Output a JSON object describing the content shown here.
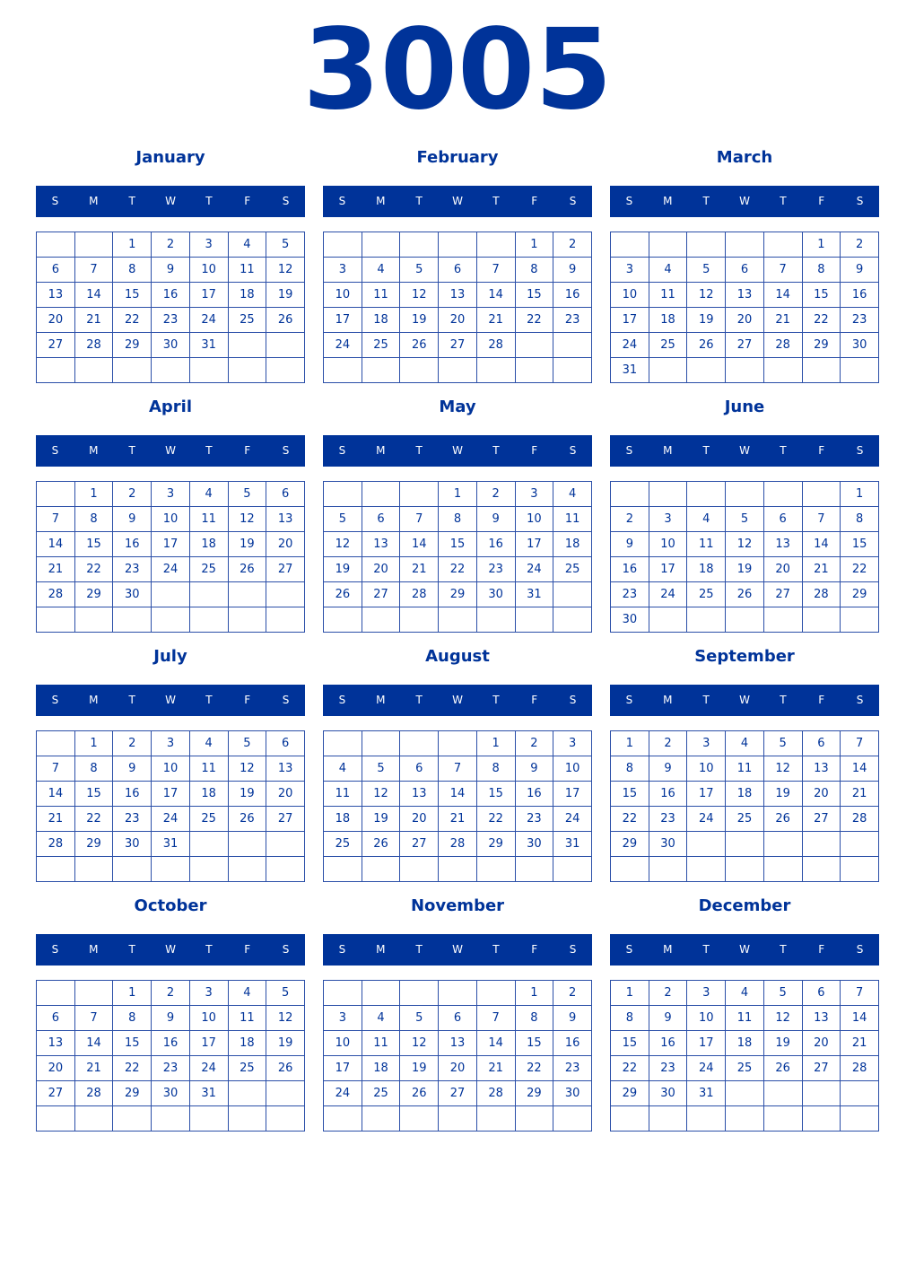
{
  "year": "3005",
  "weekday_labels": [
    "S",
    "M",
    "T",
    "W",
    "T",
    "F",
    "S"
  ],
  "colors": {
    "primary": "#003399",
    "header_text": "#ffffff",
    "border": "#2b4fa8"
  },
  "months": [
    {
      "name": "January",
      "weeks": [
        [
          null,
          null,
          1,
          2,
          3,
          4,
          5
        ],
        [
          6,
          7,
          8,
          9,
          10,
          11,
          12
        ],
        [
          13,
          14,
          15,
          16,
          17,
          18,
          19
        ],
        [
          20,
          21,
          22,
          23,
          24,
          25,
          26
        ],
        [
          27,
          28,
          29,
          30,
          31,
          null,
          null
        ],
        [
          null,
          null,
          null,
          null,
          null,
          null,
          null
        ]
      ]
    },
    {
      "name": "February",
      "weeks": [
        [
          null,
          null,
          null,
          null,
          null,
          1,
          2
        ],
        [
          3,
          4,
          5,
          6,
          7,
          8,
          9
        ],
        [
          10,
          11,
          12,
          13,
          14,
          15,
          16
        ],
        [
          17,
          18,
          19,
          20,
          21,
          22,
          23
        ],
        [
          24,
          25,
          26,
          27,
          28,
          null,
          null
        ],
        [
          null,
          null,
          null,
          null,
          null,
          null,
          null
        ]
      ]
    },
    {
      "name": "March",
      "weeks": [
        [
          null,
          null,
          null,
          null,
          null,
          1,
          2
        ],
        [
          3,
          4,
          5,
          6,
          7,
          8,
          9
        ],
        [
          10,
          11,
          12,
          13,
          14,
          15,
          16
        ],
        [
          17,
          18,
          19,
          20,
          21,
          22,
          23
        ],
        [
          24,
          25,
          26,
          27,
          28,
          29,
          30
        ],
        [
          31,
          null,
          null,
          null,
          null,
          null,
          null
        ]
      ]
    },
    {
      "name": "April",
      "weeks": [
        [
          null,
          1,
          2,
          3,
          4,
          5,
          6
        ],
        [
          7,
          8,
          9,
          10,
          11,
          12,
          13
        ],
        [
          14,
          15,
          16,
          17,
          18,
          19,
          20
        ],
        [
          21,
          22,
          23,
          24,
          25,
          26,
          27
        ],
        [
          28,
          29,
          30,
          null,
          null,
          null,
          null
        ],
        [
          null,
          null,
          null,
          null,
          null,
          null,
          null
        ]
      ]
    },
    {
      "name": "May",
      "weeks": [
        [
          null,
          null,
          null,
          1,
          2,
          3,
          4
        ],
        [
          5,
          6,
          7,
          8,
          9,
          10,
          11
        ],
        [
          12,
          13,
          14,
          15,
          16,
          17,
          18
        ],
        [
          19,
          20,
          21,
          22,
          23,
          24,
          25
        ],
        [
          26,
          27,
          28,
          29,
          30,
          31,
          null
        ],
        [
          null,
          null,
          null,
          null,
          null,
          null,
          null
        ]
      ]
    },
    {
      "name": "June",
      "weeks": [
        [
          null,
          null,
          null,
          null,
          null,
          null,
          1
        ],
        [
          2,
          3,
          4,
          5,
          6,
          7,
          8
        ],
        [
          9,
          10,
          11,
          12,
          13,
          14,
          15
        ],
        [
          16,
          17,
          18,
          19,
          20,
          21,
          22
        ],
        [
          23,
          24,
          25,
          26,
          27,
          28,
          29
        ],
        [
          30,
          null,
          null,
          null,
          null,
          null,
          null
        ]
      ]
    },
    {
      "name": "July",
      "weeks": [
        [
          null,
          1,
          2,
          3,
          4,
          5,
          6
        ],
        [
          7,
          8,
          9,
          10,
          11,
          12,
          13
        ],
        [
          14,
          15,
          16,
          17,
          18,
          19,
          20
        ],
        [
          21,
          22,
          23,
          24,
          25,
          26,
          27
        ],
        [
          28,
          29,
          30,
          31,
          null,
          null,
          null
        ],
        [
          null,
          null,
          null,
          null,
          null,
          null,
          null
        ]
      ]
    },
    {
      "name": "August",
      "weeks": [
        [
          null,
          null,
          null,
          null,
          1,
          2,
          3
        ],
        [
          4,
          5,
          6,
          7,
          8,
          9,
          10
        ],
        [
          11,
          12,
          13,
          14,
          15,
          16,
          17
        ],
        [
          18,
          19,
          20,
          21,
          22,
          23,
          24
        ],
        [
          25,
          26,
          27,
          28,
          29,
          30,
          31
        ],
        [
          null,
          null,
          null,
          null,
          null,
          null,
          null
        ]
      ]
    },
    {
      "name": "September",
      "weeks": [
        [
          1,
          2,
          3,
          4,
          5,
          6,
          7
        ],
        [
          8,
          9,
          10,
          11,
          12,
          13,
          14
        ],
        [
          15,
          16,
          17,
          18,
          19,
          20,
          21
        ],
        [
          22,
          23,
          24,
          25,
          26,
          27,
          28
        ],
        [
          29,
          30,
          null,
          null,
          null,
          null,
          null
        ],
        [
          null,
          null,
          null,
          null,
          null,
          null,
          null
        ]
      ]
    },
    {
      "name": "October",
      "weeks": [
        [
          null,
          null,
          1,
          2,
          3,
          4,
          5
        ],
        [
          6,
          7,
          8,
          9,
          10,
          11,
          12
        ],
        [
          13,
          14,
          15,
          16,
          17,
          18,
          19
        ],
        [
          20,
          21,
          22,
          23,
          24,
          25,
          26
        ],
        [
          27,
          28,
          29,
          30,
          31,
          null,
          null
        ],
        [
          null,
          null,
          null,
          null,
          null,
          null,
          null
        ]
      ]
    },
    {
      "name": "November",
      "weeks": [
        [
          null,
          null,
          null,
          null,
          null,
          1,
          2
        ],
        [
          3,
          4,
          5,
          6,
          7,
          8,
          9
        ],
        [
          10,
          11,
          12,
          13,
          14,
          15,
          16
        ],
        [
          17,
          18,
          19,
          20,
          21,
          22,
          23
        ],
        [
          24,
          25,
          26,
          27,
          28,
          29,
          30
        ],
        [
          null,
          null,
          null,
          null,
          null,
          null,
          null
        ]
      ]
    },
    {
      "name": "December",
      "weeks": [
        [
          1,
          2,
          3,
          4,
          5,
          6,
          7
        ],
        [
          8,
          9,
          10,
          11,
          12,
          13,
          14
        ],
        [
          15,
          16,
          17,
          18,
          19,
          20,
          21
        ],
        [
          22,
          23,
          24,
          25,
          26,
          27,
          28
        ],
        [
          29,
          30,
          31,
          null,
          null,
          null,
          null
        ],
        [
          null,
          null,
          null,
          null,
          null,
          null,
          null
        ]
      ]
    }
  ]
}
